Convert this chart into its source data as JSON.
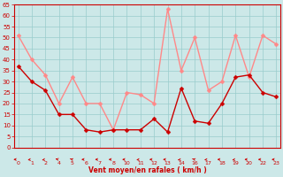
{
  "x_labels": [
    "0",
    "1",
    "2",
    "4",
    "5",
    "6",
    "7",
    "8",
    "10",
    "11",
    "12",
    "13",
    "14",
    "16",
    "17",
    "18",
    "19",
    "20",
    "22",
    "23"
  ],
  "x_indices": [
    0,
    1,
    2,
    3,
    4,
    5,
    6,
    7,
    8,
    9,
    10,
    11,
    12,
    13,
    14,
    15,
    16,
    17,
    18,
    19
  ],
  "wind_mean": [
    37,
    30,
    26,
    15,
    15,
    8,
    7,
    8,
    8,
    8,
    13,
    7,
    27,
    12,
    11,
    20,
    32,
    33,
    25,
    23
  ],
  "wind_gust": [
    51,
    40,
    33,
    20,
    32,
    20,
    20,
    8,
    25,
    24,
    20,
    63,
    35,
    50,
    26,
    30,
    51,
    32,
    51,
    47
  ],
  "wind_mean_color": "#cc0000",
  "wind_gust_color": "#ff8888",
  "bg_color": "#cce8e8",
  "grid_color": "#99cccc",
  "axis_color": "#cc0000",
  "text_color": "#cc0000",
  "xlabel": "Vent moyen/en rafales ( km/h )",
  "ylim": [
    0,
    65
  ],
  "yticks": [
    0,
    5,
    10,
    15,
    20,
    25,
    30,
    35,
    40,
    45,
    50,
    55,
    60,
    65
  ],
  "marker_size": 2.5,
  "linewidth": 1.0,
  "arrow_angles_deg": [
    270,
    300,
    315,
    225,
    210,
    270,
    270,
    270,
    270,
    300,
    270,
    270,
    315,
    210,
    300,
    270,
    315,
    270,
    270,
    270
  ]
}
